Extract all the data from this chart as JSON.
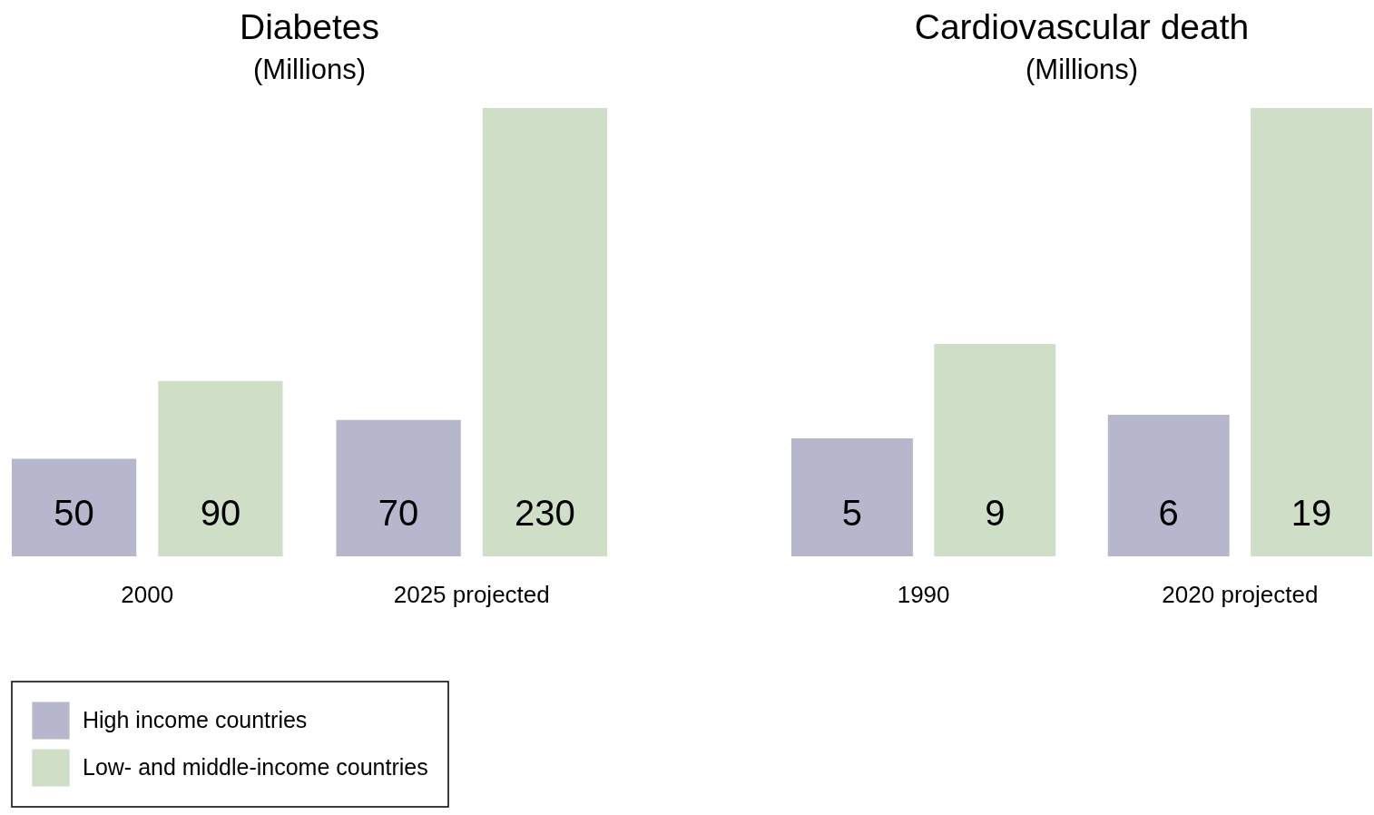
{
  "chart_data": [
    {
      "type": "bar",
      "title": "Diabetes",
      "subtitle": "(Millions)",
      "categories": [
        "2000",
        "2025 projected"
      ],
      "series": [
        {
          "name": "High income countries",
          "color": "#b6b6cd",
          "values": [
            50,
            70
          ]
        },
        {
          "name": "Low- and middle-income countries",
          "color": "#cfdec6",
          "values": [
            90,
            230
          ]
        }
      ],
      "data_labels": true,
      "legend": "bottom left"
    },
    {
      "type": "bar",
      "title": "Cardiovascular death",
      "subtitle": "(Millions)",
      "categories": [
        "1990",
        "2020 projected"
      ],
      "series": [
        {
          "name": "High income countries",
          "color": "#b6b6cd",
          "values": [
            5,
            6
          ]
        },
        {
          "name": "Low- and middle-income countries",
          "color": "#cfdec6",
          "values": [
            9,
            19
          ]
        }
      ],
      "data_labels": true
    }
  ]
}
